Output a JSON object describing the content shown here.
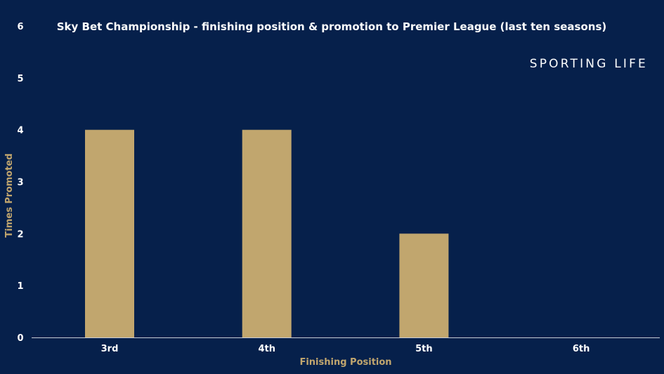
{
  "brand": {
    "name": "SPORTING LIFE"
  },
  "chart_data": {
    "type": "bar",
    "title": "Sky Bet Championship - finishing position & promotion to Premier League (last ten seasons)",
    "xlabel": "Finishing Position",
    "ylabel": "Times Promoted",
    "categories": [
      "3rd",
      "4th",
      "5th",
      "6th"
    ],
    "values": [
      4,
      4,
      2,
      0
    ],
    "ylim": [
      0,
      6
    ],
    "yticks": [
      "0",
      "1",
      "2",
      "3",
      "4",
      "5",
      "6"
    ],
    "grid": false,
    "legend": "none",
    "colors": {
      "background": "#06204b",
      "bar": "#c1a66e",
      "text": "#ffffff",
      "axis_title": "#c1a66e",
      "axis_line": "#c8cbd6"
    }
  }
}
